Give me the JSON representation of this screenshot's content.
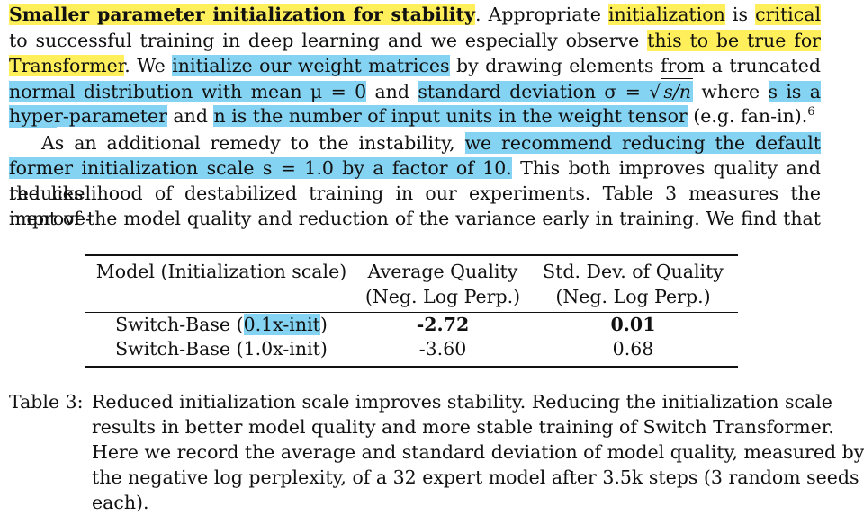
{
  "para1": {
    "l1_a": "Smaller parameter initialization for stability",
    "l1_b": ". Appropriate ",
    "l1_c": "initialization",
    "l1_d": " is ",
    "l1_e": "critical",
    "l2_a": "to successful training in deep learning and we especially observe ",
    "l2_b": "this to be true for Switch",
    "l3_a": "Transformer",
    "l3_b": ". We ",
    "l3_c": "initialize our weight matrices",
    "l3_d": " by drawing elements from a truncated",
    "l4_a": "normal distribution with mean μ = 0",
    "l4_b": " and ",
    "l4_c": "standard deviation σ = ",
    "l4_d": "s/n",
    "l4_e": " where ",
    "l4_f": "s is a scale",
    "l5_a": "hyper-parameter",
    "l5_b": " and ",
    "l5_c": "n is the number of input units in the weight tensor",
    "l5_d": " (e.g. fan-in).",
    "l5_sup": "6"
  },
  "para2": {
    "l1_a": "As an additional remedy to the instability, ",
    "l1_b": "we recommend reducing the default Trans-",
    "l2_a": "former initialization scale s = 1.0 by a factor of 10.",
    "l2_b": " This both improves quality and reduces",
    "l3": "the likelihood of destabilized training in our experiments. Table 3 measures the improve-",
    "l4": "ment of the model quality and reduction of the variance early in training. We find that"
  },
  "table": {
    "headers": [
      [
        "Model (Initialization scale)",
        ""
      ],
      [
        "Average Quality",
        "(Neg. Log Perp.)"
      ],
      [
        "Std. Dev. of Quality",
        "(Neg. Log Perp.)"
      ]
    ],
    "rows": [
      {
        "model_prefix": "Switch-Base (",
        "model_hl": "0.1x-init",
        "model_suffix": ")",
        "avg": "-2.72",
        "std": "0.01"
      },
      {
        "model": "Switch-Base (1.0x-init)",
        "avg": "-3.60",
        "std": "0.68"
      }
    ]
  },
  "caption": {
    "label": "Table 3:",
    "lines": [
      "Reduced initialization scale improves stability. Reducing the initialization scale",
      "results in better model quality and more stable training of Switch Transformer.",
      "Here we record the average and standard deviation of model quality, measured by",
      "the negative log perplexity, of a 32 expert model after 3.5k steps (3 random seeds",
      "each)."
    ]
  },
  "colors": {
    "yellow_highlight": "#ffef5a",
    "blue_highlight": "#84d3f2"
  }
}
